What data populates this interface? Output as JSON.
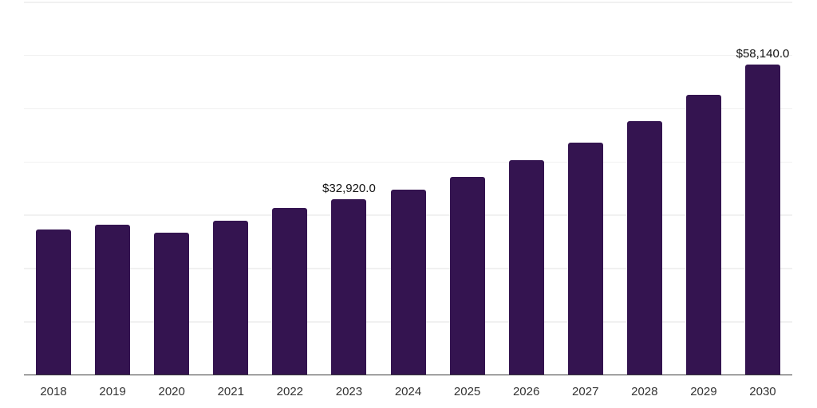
{
  "chart": {
    "background": "#ffffff",
    "bar_color": "#341450",
    "grid_color": "#f1f1f1",
    "axis_color": "#3a3a3a",
    "tick_color": "#333333",
    "value_label_color": "#111111"
  },
  "chart_data": {
    "type": "bar",
    "title": "",
    "xlabel": "",
    "ylabel": "",
    "categories": [
      "2018",
      "2019",
      "2020",
      "2021",
      "2022",
      "2023",
      "2024",
      "2025",
      "2026",
      "2027",
      "2028",
      "2029",
      "2030"
    ],
    "values": [
      27250,
      28150,
      26650,
      28900,
      31300,
      32920,
      34650,
      37150,
      40250,
      43500,
      47600,
      52500,
      58140
    ],
    "data_labels": {
      "2023": "$32,920.0",
      "2030": "$58,140.0"
    },
    "ylim": [
      0,
      70000
    ],
    "grid_step": 10000,
    "grid": true,
    "legend": false,
    "y_tick_labels": []
  }
}
